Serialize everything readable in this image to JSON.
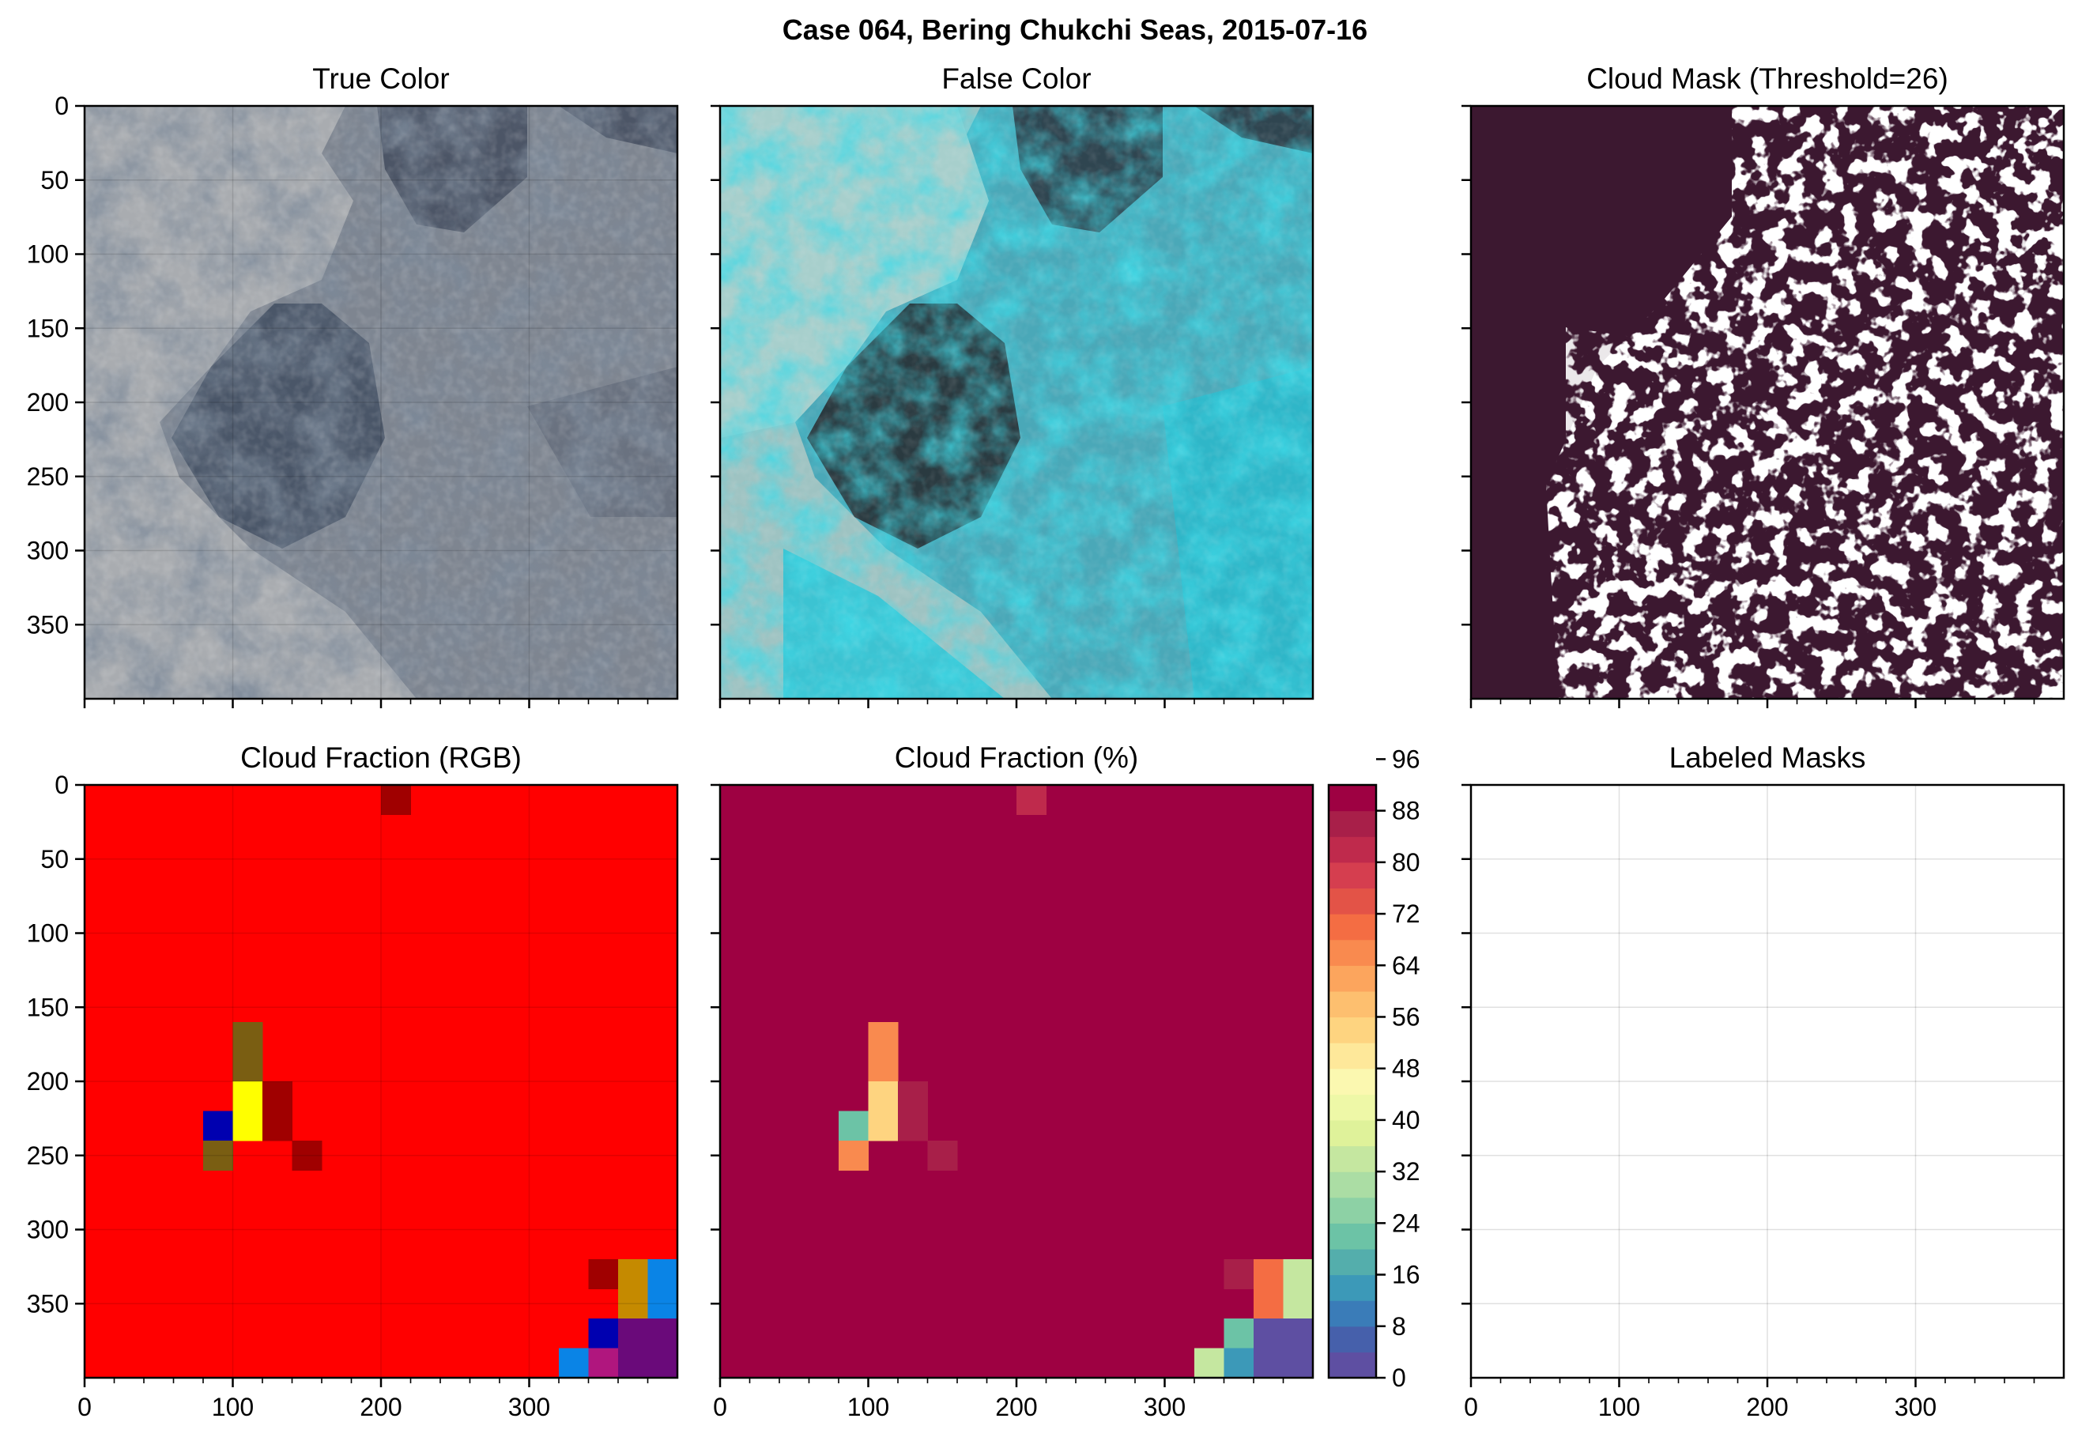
{
  "figure": {
    "title": "Case 064, Bering Chukchi Seas, 2015-07-16"
  },
  "panels": {
    "true_color": {
      "title": "True Color"
    },
    "false_color": {
      "title": "False Color"
    },
    "cloud_mask": {
      "title": "Cloud Mask (Threshold=26)"
    },
    "cloud_fraction_rgb": {
      "title": "Cloud Fraction (RGB)"
    },
    "cloud_fraction_pct": {
      "title": "Cloud Fraction (%)"
    },
    "labeled_masks": {
      "title": "Labeled Masks"
    }
  },
  "axes": {
    "y_ticks": [
      "0",
      "50",
      "100",
      "150",
      "200",
      "250",
      "300",
      "350"
    ],
    "x_ticks": [
      "0",
      "100",
      "200",
      "300"
    ],
    "x_lim": [
      0,
      400
    ],
    "y_lim": [
      400,
      0
    ]
  },
  "colors": {
    "mask_cloud": "#ffffff",
    "mask_clear": "#3c1830",
    "rgb_high": "#ff0000",
    "rgb_dark_red": "#a00000",
    "rgb_olive": "#7a5e12",
    "rgb_yellow": "#ffff00",
    "rgb_blue": "#0000b0",
    "rgb_ochre": "#c58a00",
    "rgb_sky": "#0a84e6",
    "rgb_magenta": "#b0167e",
    "rgb_purple": "#6a0a7a"
  },
  "chart_data": [
    {
      "type": "heatmap",
      "title": "Cloud Fraction (%)",
      "cell_size": 20,
      "x_range": [
        0,
        400
      ],
      "y_range": [
        0,
        400
      ],
      "default_value": 100,
      "colorbar": {
        "ticks": [
          "0",
          "8",
          "16",
          "24",
          "32",
          "40",
          "48",
          "56",
          "64",
          "72",
          "80",
          "88",
          "96"
        ],
        "range": [
          0,
          100
        ],
        "step": 4,
        "palette": [
          "#5e4fa2",
          "#4660ab",
          "#3a7cb8",
          "#3c99b8",
          "#54aeac",
          "#6cc3a6",
          "#8dd1a5",
          "#abdda4",
          "#c5e7a0",
          "#dff29a",
          "#eef8a7",
          "#fbf8b0",
          "#fee89a",
          "#fed480",
          "#fdbf6f",
          "#fca55d",
          "#f98a4f",
          "#f46d43",
          "#e35347",
          "#d53e4f",
          "#bf2a4c",
          "#a81f49",
          "#9e0142"
        ]
      },
      "cells": [
        {
          "x": 200,
          "y": 0,
          "value": 80
        },
        {
          "x": 100,
          "y": 160,
          "value": 65
        },
        {
          "x": 100,
          "y": 180,
          "value": 65
        },
        {
          "x": 100,
          "y": 200,
          "value": 55
        },
        {
          "x": 120,
          "y": 200,
          "value": 85
        },
        {
          "x": 80,
          "y": 220,
          "value": 22
        },
        {
          "x": 100,
          "y": 220,
          "value": 55
        },
        {
          "x": 120,
          "y": 220,
          "value": 85
        },
        {
          "x": 80,
          "y": 240,
          "value": 65
        },
        {
          "x": 140,
          "y": 240,
          "value": 85
        },
        {
          "x": 340,
          "y": 320,
          "value": 85
        },
        {
          "x": 360,
          "y": 320,
          "value": 68
        },
        {
          "x": 380,
          "y": 320,
          "value": 35
        },
        {
          "x": 360,
          "y": 340,
          "value": 68
        },
        {
          "x": 380,
          "y": 340,
          "value": 35
        },
        {
          "x": 340,
          "y": 360,
          "value": 20
        },
        {
          "x": 360,
          "y": 360,
          "value": 2
        },
        {
          "x": 380,
          "y": 360,
          "value": 2
        },
        {
          "x": 320,
          "y": 380,
          "value": 35
        },
        {
          "x": 340,
          "y": 380,
          "value": 15
        },
        {
          "x": 360,
          "y": 380,
          "value": 2
        },
        {
          "x": 380,
          "y": 380,
          "value": 2
        }
      ]
    },
    {
      "type": "heatmap",
      "title": "Cloud Fraction (RGB)",
      "cell_size": 20,
      "x_range": [
        0,
        400
      ],
      "y_range": [
        0,
        400
      ],
      "default_color": "#ff0000",
      "cells": [
        {
          "x": 200,
          "y": 0,
          "color": "#a00000"
        },
        {
          "x": 100,
          "y": 160,
          "color": "#7a5e12"
        },
        {
          "x": 100,
          "y": 180,
          "color": "#7a5e12"
        },
        {
          "x": 100,
          "y": 200,
          "color": "#ffff00"
        },
        {
          "x": 120,
          "y": 200,
          "color": "#a00000"
        },
        {
          "x": 80,
          "y": 220,
          "color": "#0000b0"
        },
        {
          "x": 100,
          "y": 220,
          "color": "#ffff00"
        },
        {
          "x": 120,
          "y": 220,
          "color": "#a00000"
        },
        {
          "x": 80,
          "y": 240,
          "color": "#7a5e12"
        },
        {
          "x": 140,
          "y": 240,
          "color": "#a00000"
        },
        {
          "x": 340,
          "y": 320,
          "color": "#a00000"
        },
        {
          "x": 360,
          "y": 320,
          "color": "#c58a00"
        },
        {
          "x": 380,
          "y": 320,
          "color": "#0a84e6"
        },
        {
          "x": 360,
          "y": 340,
          "color": "#c58a00"
        },
        {
          "x": 380,
          "y": 340,
          "color": "#0a84e6"
        },
        {
          "x": 340,
          "y": 360,
          "color": "#0000b0"
        },
        {
          "x": 360,
          "y": 360,
          "color": "#6a0a7a"
        },
        {
          "x": 380,
          "y": 360,
          "color": "#6a0a7a"
        },
        {
          "x": 320,
          "y": 380,
          "color": "#0a84e6"
        },
        {
          "x": 340,
          "y": 380,
          "color": "#b0167e"
        },
        {
          "x": 360,
          "y": 380,
          "color": "#6a0a7a"
        },
        {
          "x": 380,
          "y": 380,
          "color": "#6a0a7a"
        }
      ]
    }
  ]
}
